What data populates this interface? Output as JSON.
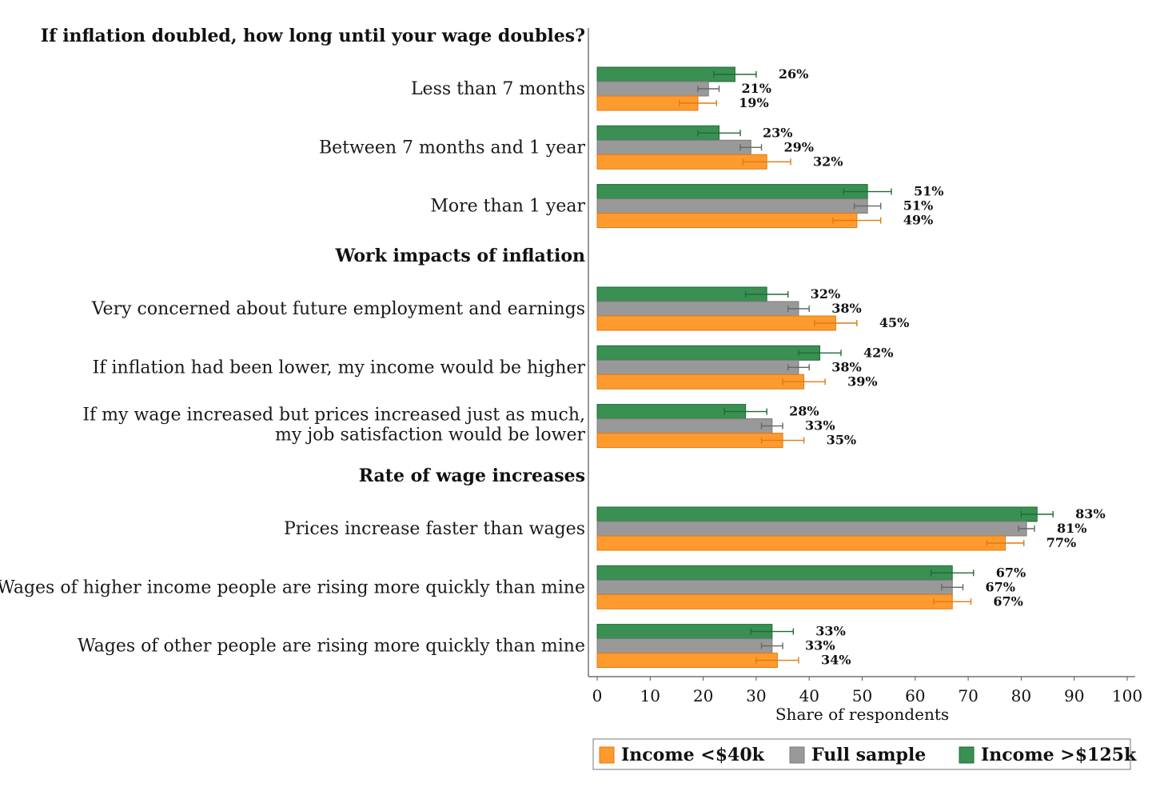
{
  "chart_data": {
    "type": "bar",
    "orientation": "horizontal",
    "xlabel": "Share of respondents",
    "xlim": [
      0,
      100
    ],
    "xticks": [
      0,
      10,
      20,
      30,
      40,
      50,
      60,
      70,
      80,
      90,
      100
    ],
    "grid": false,
    "legend_position": "bottom",
    "series": [
      {
        "name": "Income >$125k",
        "color": "#3a8f52"
      },
      {
        "name": "Full sample",
        "color": "#999999"
      },
      {
        "name": "Income <$40k",
        "color": "#ff9a2e"
      }
    ],
    "legend_order": [
      "Income <$40k",
      "Full sample",
      "Income >$125k"
    ],
    "groups": [
      {
        "header": "If inflation doubled, how long until your wage doubles?",
        "items": [
          {
            "label": [
              "Less than 7 months"
            ],
            "values": [
              26,
              21,
              19
            ],
            "labels": [
              "26%",
              "21%",
              "19%"
            ],
            "err": [
              4,
              2,
              3.5
            ]
          },
          {
            "label": [
              "Between 7 months and 1 year"
            ],
            "values": [
              23,
              29,
              32
            ],
            "labels": [
              "23%",
              "29%",
              "32%"
            ],
            "err": [
              4,
              2,
              4.5
            ]
          },
          {
            "label": [
              "More than 1 year"
            ],
            "values": [
              51,
              51,
              49
            ],
            "labels": [
              "51%",
              "51%",
              "49%"
            ],
            "err": [
              4.5,
              2.5,
              4.5
            ]
          }
        ]
      },
      {
        "header": "Work impacts of inflation",
        "items": [
          {
            "label": [
              "Very concerned about future employment and earnings"
            ],
            "values": [
              32,
              38,
              45
            ],
            "labels": [
              "32%",
              "38%",
              "45%"
            ],
            "err": [
              4,
              2,
              4
            ]
          },
          {
            "label": [
              "If inflation had been lower, my income would be higher"
            ],
            "values": [
              42,
              38,
              39
            ],
            "labels": [
              "42%",
              "38%",
              "39%"
            ],
            "err": [
              4,
              2,
              4
            ]
          },
          {
            "label": [
              "If my wage increased but prices increased just as much,",
              "my job satisfaction would be lower"
            ],
            "values": [
              28,
              33,
              35
            ],
            "labels": [
              "28%",
              "33%",
              "35%"
            ],
            "err": [
              4,
              2,
              4
            ]
          }
        ]
      },
      {
        "header": "Rate of wage increases",
        "items": [
          {
            "label": [
              "Prices increase faster than wages"
            ],
            "values": [
              83,
              81,
              77
            ],
            "labels": [
              "83%",
              "81%",
              "77%"
            ],
            "err": [
              3,
              1.5,
              3.5
            ]
          },
          {
            "label": [
              "Wages of higher income people are rising more quickly than mine"
            ],
            "values": [
              67,
              67,
              67
            ],
            "labels": [
              "67%",
              "67%",
              "67%"
            ],
            "err": [
              4,
              2,
              3.5
            ]
          },
          {
            "label": [
              "Wages of other people are rising more quickly than mine"
            ],
            "values": [
              33,
              33,
              34
            ],
            "labels": [
              "33%",
              "33%",
              "34%"
            ],
            "err": [
              4,
              2,
              4
            ]
          }
        ]
      }
    ]
  }
}
